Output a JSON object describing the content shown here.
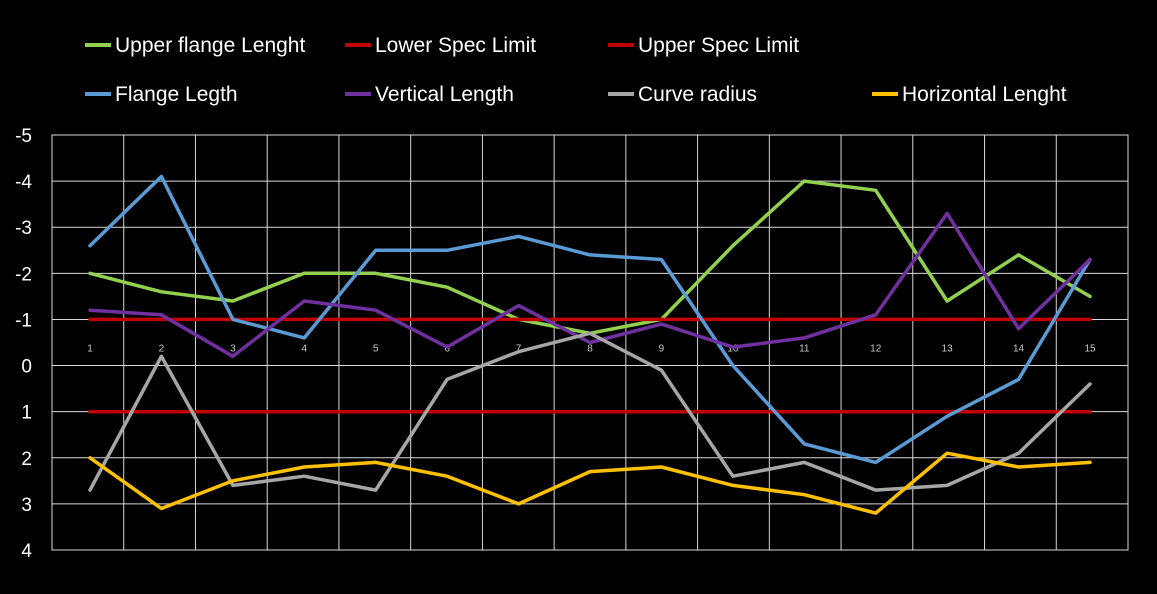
{
  "chart_data": {
    "type": "line",
    "title": "",
    "xlabel": "",
    "ylabel": "",
    "x": [
      "1",
      "2",
      "3",
      "4",
      "5",
      "6",
      "7",
      "8",
      "9",
      "10",
      "11",
      "12",
      "13",
      "14",
      "15"
    ],
    "y_ticks": [
      "-5",
      "-4",
      "-3",
      "-2",
      "-1",
      "0",
      "1",
      "2",
      "3",
      "4"
    ],
    "ylim": [
      -5,
      4
    ],
    "y_inverted": true,
    "grid": true,
    "legend_position": "top",
    "series": [
      {
        "name": "Upper flange Lenght",
        "color": "#92d050",
        "values": [
          -2.0,
          -1.6,
          -1.4,
          -2.0,
          -2.0,
          -1.7,
          -1.0,
          -0.7,
          -1.0,
          -2.6,
          -4.0,
          -3.8,
          -1.4,
          -2.4,
          -1.5
        ]
      },
      {
        "name": "Lower Spec Limit",
        "color": "#c00000",
        "values": [
          1,
          1,
          1,
          1,
          1,
          1,
          1,
          1,
          1,
          1,
          1,
          1,
          1,
          1,
          1
        ]
      },
      {
        "name": "Upper Spec Limit",
        "color": "#c00000",
        "values": [
          -1,
          -1,
          -1,
          -1,
          -1,
          -1,
          -1,
          -1,
          -1,
          -1,
          -1,
          -1,
          -1,
          -1,
          -1
        ]
      },
      {
        "name": "Flange Legth",
        "color": "#5b9bd5",
        "values": [
          -2.6,
          -4.1,
          -1.0,
          -0.6,
          -2.5,
          -2.5,
          -2.8,
          -2.4,
          -2.3,
          0.0,
          1.7,
          2.1,
          1.1,
          0.3,
          -2.3
        ]
      },
      {
        "name": "Vertical Length",
        "color": "#7030a0",
        "values": [
          -1.2,
          -1.1,
          -0.2,
          -1.4,
          -1.2,
          -0.4,
          -1.3,
          -0.5,
          -0.9,
          -0.4,
          -0.6,
          -1.1,
          -3.3,
          -0.8,
          -2.3
        ]
      },
      {
        "name": "Curve radius",
        "color": "#a6a6a6",
        "values": [
          2.7,
          -0.2,
          2.6,
          2.4,
          2.7,
          0.3,
          -0.3,
          -0.7,
          0.1,
          2.4,
          2.1,
          2.7,
          2.6,
          1.9,
          0.4
        ]
      },
      {
        "name": "Horizontal Lenght",
        "color": "#ffc000",
        "values": [
          2.0,
          3.1,
          2.5,
          2.2,
          2.1,
          2.4,
          3.0,
          2.3,
          2.2,
          2.6,
          2.8,
          3.2,
          1.9,
          2.2,
          2.1
        ]
      }
    ]
  }
}
